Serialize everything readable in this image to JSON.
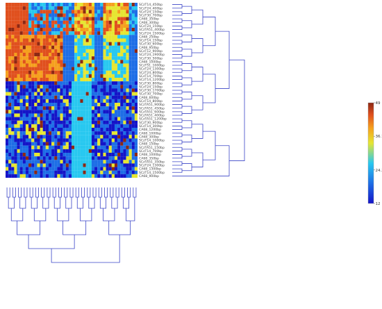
{
  "chart_data": {
    "type": "heatmap",
    "row_labels": [
      "SCzT14_450bp",
      "SCzT24_400bp",
      "SCzT24_150bp",
      "SCzT30_700bp",
      "CA68_350bp",
      "CA68_300bp",
      "SCzT24_150bp",
      "SCzTA51_400bp",
      "SCzT24_1500bp",
      "CA68_250bp",
      "SCzT14_150bp",
      "SCzT30_600bp",
      "CA68_950bp",
      "SCzT12_900bp",
      "SCzT24_1900bp",
      "SCzT30_500bp",
      "CA68_1000bp",
      "SCzT51_1000bp",
      "SCzT24_1300bp",
      "SCzT24_800bp",
      "SCzT14_700bp",
      "SCzT14_1200bp",
      "SCzT30_800bp",
      "SCzT24_150bp",
      "SCzT30_1700bp",
      "SCzT30_700bp",
      "CA68_600bp",
      "SCzT14_800bp",
      "SCzTA51_900bp",
      "SCzTA51_450bp",
      "SCzTA51_600bp",
      "SCzTA51_400bp",
      "SCzTA51_1200bp",
      "SCzT30_900bp",
      "SCzT14_300bp",
      "CA68_1200bp",
      "CA68_1000bp",
      "CA68_300bp",
      "SCzT14_1000bp",
      "CA68_150bp",
      "SCzTA51_150bp",
      "SCzT14_700bp",
      "CA68_1000bp",
      "CA68_350bp",
      "SCzTA51_350bp",
      "SCzT24_1300bp",
      "CA68_1300bp",
      "SCzT14_1500bp",
      "CA68_900bp"
    ],
    "columns_count": 46,
    "color_scale": {
      "min": 12,
      "max": 49,
      "ticks": [
        12,
        24.3,
        36.7,
        49
      ],
      "colors": [
        "#1414c8",
        "#1e6ee6",
        "#28c8f0",
        "#e6e632",
        "#f5a01e",
        "#e0501e",
        "#8c2814"
      ]
    },
    "legend_placement": "right",
    "dendrograms": [
      "rows-right",
      "columns-bottom"
    ]
  }
}
